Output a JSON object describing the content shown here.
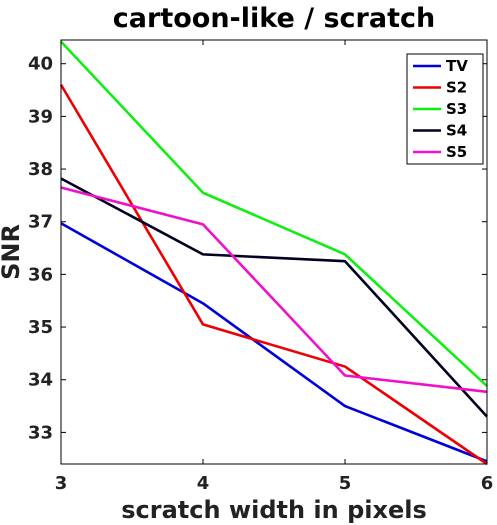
{
  "chart_data": {
    "type": "line",
    "title": "cartoon-like / scratch",
    "xlabel": "scratch width in pixels",
    "ylabel": "SNR",
    "x": [
      3,
      4,
      5,
      6
    ],
    "xlim": [
      3,
      6
    ],
    "ylim": [
      32.4,
      40.45
    ],
    "xticks": [
      "3",
      "4",
      "5",
      "6"
    ],
    "yticks": [
      "33",
      "34",
      "35",
      "36",
      "37",
      "38",
      "39",
      "40"
    ],
    "grid": false,
    "legend_position": "top-right",
    "series": [
      {
        "name": "TV",
        "color": "#0000dd",
        "values": [
          36.97,
          35.45,
          33.5,
          32.45
        ]
      },
      {
        "name": "S2",
        "color": "#ee0000",
        "values": [
          39.6,
          35.05,
          34.25,
          32.4
        ]
      },
      {
        "name": "S3",
        "color": "#11ee11",
        "values": [
          40.42,
          37.55,
          36.38,
          33.88
        ]
      },
      {
        "name": "S4",
        "color": "#000022",
        "values": [
          37.82,
          36.38,
          36.25,
          33.3
        ]
      },
      {
        "name": "S5",
        "color": "#ee11cc",
        "values": [
          37.65,
          36.95,
          34.08,
          33.77
        ]
      }
    ]
  }
}
